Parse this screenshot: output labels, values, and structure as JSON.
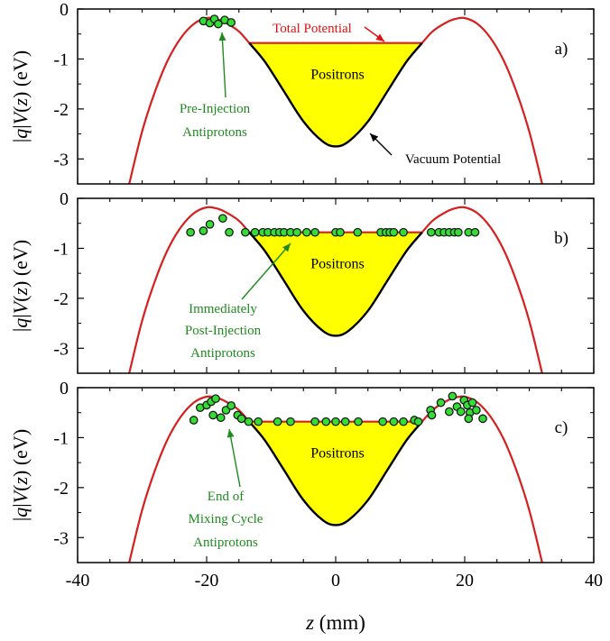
{
  "chart_data": {
    "type": "line",
    "xlabel_var": "z",
    "xlabel_unit": " (mm)",
    "ylabel_parts": [
      "|",
      "q",
      "|",
      "V",
      "(",
      "z",
      ") (eV)"
    ],
    "xlim": [
      -40,
      40
    ],
    "xticks": [
      -40,
      -20,
      0,
      20,
      40
    ],
    "ylim": [
      -3.5,
      0
    ],
    "yticks": [
      0,
      -1,
      -2,
      -3
    ],
    "ytick_labels": [
      "0",
      "-1",
      "-2",
      "-3"
    ],
    "colors": {
      "vacuum": "#000000",
      "total": "#d62020",
      "fill": "#ffff00",
      "marker": "#33dd33",
      "marker_edge": "#1a1a1a",
      "annot_green": "#1f8a1f",
      "annot_red": "#e01010"
    },
    "curves": {
      "outer": {
        "x": [
          -32,
          -30,
          -28,
          -26,
          -24,
          -22,
          -20,
          -18.5,
          -17,
          -15,
          -13.4
        ],
        "y": [
          -3.5,
          -2.45,
          -1.65,
          -1.02,
          -0.58,
          -0.3,
          -0.18,
          -0.2,
          -0.28,
          -0.45,
          -0.68
        ]
      },
      "well": {
        "x": [
          -13.4,
          -11,
          -8,
          -5,
          -2,
          0,
          2,
          5,
          8,
          11,
          13.4
        ],
        "y": [
          -0.68,
          -1.05,
          -1.65,
          -2.25,
          -2.65,
          -2.75,
          -2.65,
          -2.25,
          -1.65,
          -1.05,
          -0.68
        ]
      },
      "total_potential": -0.68
    },
    "panels": [
      {
        "tag": "a)",
        "positrons_label": "Positrons",
        "points": [
          {
            "x": -20.5,
            "y": -0.24
          },
          {
            "x": -19.5,
            "y": -0.28
          },
          {
            "x": -18.8,
            "y": -0.2
          },
          {
            "x": -18.2,
            "y": -0.3
          },
          {
            "x": -17.2,
            "y": -0.22
          },
          {
            "x": -16.2,
            "y": -0.27
          }
        ],
        "annotations": [
          {
            "text": "Total Potential",
            "color": "red"
          },
          {
            "text": "Pre-Injection",
            "color": "green"
          },
          {
            "text": "Antiprotons",
            "color": "green"
          },
          {
            "text": "Vacuum Potential",
            "color": "black"
          }
        ]
      },
      {
        "tag": "b)",
        "positrons_label": "Positrons",
        "points": [
          {
            "x": -22.5,
            "y": -0.68
          },
          {
            "x": -20.5,
            "y": -0.65
          },
          {
            "x": -19.5,
            "y": -0.52
          },
          {
            "x": -17.5,
            "y": -0.4
          },
          {
            "x": -16.5,
            "y": -0.68
          },
          {
            "x": -14,
            "y": -0.68
          },
          {
            "x": -12.5,
            "y": -0.68
          },
          {
            "x": -11.3,
            "y": -0.68
          },
          {
            "x": -10.5,
            "y": -0.68
          },
          {
            "x": -9.5,
            "y": -0.68
          },
          {
            "x": -8.7,
            "y": -0.68
          },
          {
            "x": -8,
            "y": -0.68
          },
          {
            "x": -7,
            "y": -0.68
          },
          {
            "x": -6,
            "y": -0.68
          },
          {
            "x": -4.5,
            "y": -0.68
          },
          {
            "x": -3.2,
            "y": -0.68
          },
          {
            "x": 0,
            "y": -0.68
          },
          {
            "x": 0.7,
            "y": -0.68
          },
          {
            "x": 3.4,
            "y": -0.68
          },
          {
            "x": 7,
            "y": -0.68
          },
          {
            "x": 7.8,
            "y": -0.68
          },
          {
            "x": 8.4,
            "y": -0.68
          },
          {
            "x": 9,
            "y": -0.68
          },
          {
            "x": 10.5,
            "y": -0.68
          },
          {
            "x": 14.8,
            "y": -0.68
          },
          {
            "x": 16,
            "y": -0.68
          },
          {
            "x": 16.8,
            "y": -0.68
          },
          {
            "x": 17.6,
            "y": -0.68
          },
          {
            "x": 18.4,
            "y": -0.68
          },
          {
            "x": 19,
            "y": -0.68
          },
          {
            "x": 20.6,
            "y": -0.68
          },
          {
            "x": 21.6,
            "y": -0.68
          }
        ],
        "annotations": [
          {
            "text": "Immediately",
            "color": "green"
          },
          {
            "text": "Post-Injection",
            "color": "green"
          },
          {
            "text": "Antiprotons",
            "color": "green"
          }
        ]
      },
      {
        "tag": "c)",
        "positrons_label": "Positrons",
        "points": [
          {
            "x": -22,
            "y": -0.65
          },
          {
            "x": -21,
            "y": -0.4
          },
          {
            "x": -20,
            "y": -0.35
          },
          {
            "x": -19.3,
            "y": -0.28
          },
          {
            "x": -18.6,
            "y": -0.22
          },
          {
            "x": -19,
            "y": -0.55
          },
          {
            "x": -17.8,
            "y": -0.6
          },
          {
            "x": -17,
            "y": -0.45
          },
          {
            "x": -16.2,
            "y": -0.36
          },
          {
            "x": -15.2,
            "y": -0.55
          },
          {
            "x": -14.6,
            "y": -0.62
          },
          {
            "x": -13.5,
            "y": -0.68
          },
          {
            "x": -12,
            "y": -0.68
          },
          {
            "x": -9,
            "y": -0.68
          },
          {
            "x": -7,
            "y": -0.68
          },
          {
            "x": -3.2,
            "y": -0.68
          },
          {
            "x": -1.5,
            "y": -0.68
          },
          {
            "x": 0,
            "y": -0.68
          },
          {
            "x": 1.5,
            "y": -0.68
          },
          {
            "x": 3.5,
            "y": -0.68
          },
          {
            "x": 7.3,
            "y": -0.68
          },
          {
            "x": 9,
            "y": -0.68
          },
          {
            "x": 10.5,
            "y": -0.68
          },
          {
            "x": 12.2,
            "y": -0.65
          },
          {
            "x": 12.8,
            "y": -0.68
          },
          {
            "x": 14.7,
            "y": -0.45
          },
          {
            "x": 14.9,
            "y": -0.55
          },
          {
            "x": 16.3,
            "y": -0.3
          },
          {
            "x": 17.6,
            "y": -0.48
          },
          {
            "x": 18.1,
            "y": -0.17
          },
          {
            "x": 18.8,
            "y": -0.38
          },
          {
            "x": 19.4,
            "y": -0.48
          },
          {
            "x": 19.9,
            "y": -0.25
          },
          {
            "x": 20.4,
            "y": -0.35
          },
          {
            "x": 20.8,
            "y": -0.5
          },
          {
            "x": 20.6,
            "y": -0.62
          },
          {
            "x": 21.2,
            "y": -0.3
          },
          {
            "x": 21.8,
            "y": -0.45
          },
          {
            "x": 22.8,
            "y": -0.62
          }
        ],
        "annotations": [
          {
            "text": "End of",
            "color": "green"
          },
          {
            "text": "Mixing Cycle",
            "color": "green"
          },
          {
            "text": "Antiprotons",
            "color": "green"
          }
        ]
      }
    ]
  }
}
